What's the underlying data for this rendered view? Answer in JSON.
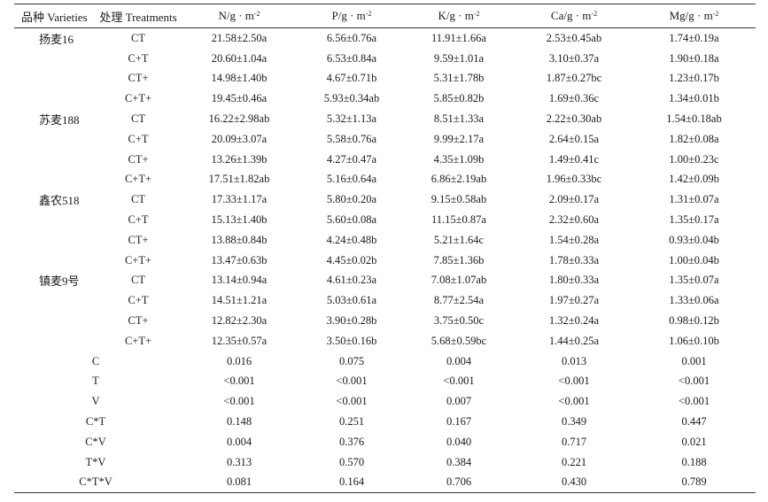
{
  "table": {
    "headers": {
      "variety": "品种 Varieties",
      "treatment": "处理 Treatments",
      "n": "N/g · m",
      "p": "P/g · m",
      "k": "K/g · m",
      "ca": "Ca/g · m",
      "mg": "Mg/g · m",
      "unit_exp": "-2"
    },
    "rows": [
      {
        "variety": "扬麦16",
        "treatment": "CT",
        "n": "21.58±2.50a",
        "p": "6.56±0.76a",
        "k": "11.91±1.66a",
        "ca": "2.53±0.45ab",
        "mg": "1.74±0.19a"
      },
      {
        "variety": "",
        "treatment": "C+T",
        "n": "20.60±1.04a",
        "p": "6.53±0.84a",
        "k": "9.59±1.01a",
        "ca": "3.10±0.37a",
        "mg": "1.90±0.18a"
      },
      {
        "variety": "",
        "treatment": "CT+",
        "n": "14.98±1.40b",
        "p": "4.67±0.71b",
        "k": "5.31±1.78b",
        "ca": "1.87±0.27bc",
        "mg": "1.23±0.17b"
      },
      {
        "variety": "",
        "treatment": "C+T+",
        "n": "19.45±0.46a",
        "p": "5.93±0.34ab",
        "k": "5.85±0.82b",
        "ca": "1.69±0.36c",
        "mg": "1.34±0.01b"
      },
      {
        "variety": "苏麦188",
        "treatment": "CT",
        "n": "16.22±2.98ab",
        "p": "5.32±1.13a",
        "k": "8.51±1.33a",
        "ca": "2.22±0.30ab",
        "mg": "1.54±0.18ab"
      },
      {
        "variety": "",
        "treatment": "C+T",
        "n": "20.09±3.07a",
        "p": "5.58±0.76a",
        "k": "9.99±2.17a",
        "ca": "2.64±0.15a",
        "mg": "1.82±0.08a"
      },
      {
        "variety": "",
        "treatment": "CT+",
        "n": "13.26±1.39b",
        "p": "4.27±0.47a",
        "k": "4.35±1.09b",
        "ca": "1.49±0.41c",
        "mg": "1.00±0.23c"
      },
      {
        "variety": "",
        "treatment": "C+T+",
        "n": "17.51±1.82ab",
        "p": "5.16±0.64a",
        "k": "6.86±2.19ab",
        "ca": "1.96±0.33bc",
        "mg": "1.42±0.09b"
      },
      {
        "variety": "鑫农518",
        "treatment": "CT",
        "n": "17.33±1.17a",
        "p": "5.80±0.20a",
        "k": "9.15±0.58ab",
        "ca": "2.09±0.17a",
        "mg": "1.31±0.07a"
      },
      {
        "variety": "",
        "treatment": "C+T",
        "n": "15.13±1.40b",
        "p": "5.60±0.08a",
        "k": "11.15±0.87a",
        "ca": "2.32±0.60a",
        "mg": "1.35±0.17a"
      },
      {
        "variety": "",
        "treatment": "CT+",
        "n": "13.88±0.84b",
        "p": "4.24±0.48b",
        "k": "5.21±1.64c",
        "ca": "1.54±0.28a",
        "mg": "0.93±0.04b"
      },
      {
        "variety": "",
        "treatment": "C+T+",
        "n": "13.47±0.63b",
        "p": "4.45±0.02b",
        "k": "7.85±1.36b",
        "ca": "1.78±0.33a",
        "mg": "1.00±0.04b"
      },
      {
        "variety": "镇麦9号",
        "treatment": "CT",
        "n": "13.14±0.94a",
        "p": "4.61±0.23a",
        "k": "7.08±1.07ab",
        "ca": "1.80±0.33a",
        "mg": "1.35±0.07a"
      },
      {
        "variety": "",
        "treatment": "C+T",
        "n": "14.51±1.21a",
        "p": "5.03±0.61a",
        "k": "8.77±2.54a",
        "ca": "1.97±0.27a",
        "mg": "1.33±0.06a"
      },
      {
        "variety": "",
        "treatment": "CT+",
        "n": "12.82±2.30a",
        "p": "3.90±0.28b",
        "k": "3.75±0.50c",
        "ca": "1.32±0.24a",
        "mg": "0.98±0.12b"
      },
      {
        "variety": "",
        "treatment": "C+T+",
        "n": "12.35±0.57a",
        "p": "3.50±0.16b",
        "k": "5.68±0.59bc",
        "ca": "1.44±0.25a",
        "mg": "1.06±0.10b"
      }
    ],
    "stats": [
      {
        "factor": "C",
        "n": "0.016",
        "p": "0.075",
        "k": "0.004",
        "ca": "0.013",
        "mg": "0.001"
      },
      {
        "factor": "T",
        "n": "<0.001",
        "p": "<0.001",
        "k": "<0.001",
        "ca": "<0.001",
        "mg": "<0.001"
      },
      {
        "factor": "V",
        "n": "<0.001",
        "p": "<0.001",
        "k": "0.007",
        "ca": "<0.001",
        "mg": "<0.001"
      },
      {
        "factor": "C*T",
        "n": "0.148",
        "p": "0.251",
        "k": "0.167",
        "ca": "0.349",
        "mg": "0.447"
      },
      {
        "factor": "C*V",
        "n": "0.004",
        "p": "0.376",
        "k": "0.040",
        "ca": "0.717",
        "mg": "0.021"
      },
      {
        "factor": "T*V",
        "n": "0.313",
        "p": "0.570",
        "k": "0.384",
        "ca": "0.221",
        "mg": "0.188"
      },
      {
        "factor": "C*T*V",
        "n": "0.081",
        "p": "0.164",
        "k": "0.706",
        "ca": "0.430",
        "mg": "0.789"
      }
    ]
  }
}
